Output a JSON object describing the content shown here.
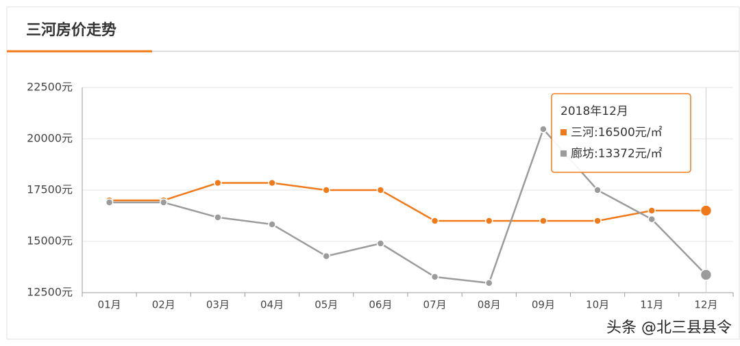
{
  "header": {
    "title": "三河房价走势"
  },
  "chart_data": {
    "type": "line",
    "categories": [
      "01月",
      "02月",
      "03月",
      "04月",
      "05月",
      "06月",
      "07月",
      "08月",
      "09月",
      "10月",
      "11月",
      "12月"
    ],
    "series": [
      {
        "color": "#f07a1a",
        "values": [
          17000,
          17000,
          17850,
          17850,
          17500,
          17500,
          16000,
          16000,
          16000,
          16000,
          16500,
          16500
        ]
      },
      {
        "color": "#9b9b9b",
        "values": [
          16900,
          16900,
          16170,
          15830,
          14280,
          14900,
          13270,
          12970,
          20470,
          17500,
          16080,
          13372
        ]
      }
    ],
    "ylim": [
      12500,
      22500
    ],
    "yticks": [
      {
        "value": 12500,
        "label": "12500元"
      },
      {
        "value": 15000,
        "label": "15000元"
      },
      {
        "value": 17500,
        "label": "17500元"
      },
      {
        "value": 20000,
        "label": "20000元"
      },
      {
        "value": 22500,
        "label": "22500元"
      }
    ],
    "grid": true,
    "tooltip": {
      "title": "2018年12月",
      "lines": [
        "三河:16500元/㎡",
        "廊坊:13372元/㎡"
      ]
    }
  },
  "watermark": "头条 @北三县县令"
}
